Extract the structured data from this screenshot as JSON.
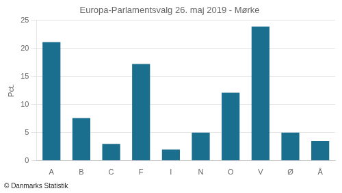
{
  "chart_data": {
    "type": "bar",
    "title": "Europa-Parlamentsvalg 26. maj 2019 - Mørke",
    "categories": [
      "A",
      "B",
      "C",
      "F",
      "I",
      "N",
      "O",
      "V",
      "Ø",
      "Å"
    ],
    "values": [
      21.1,
      7.6,
      3.0,
      17.2,
      2.0,
      5.0,
      12.1,
      23.9,
      5.0,
      3.5
    ],
    "color": "#1a6e8e",
    "ylabel": "Pct.",
    "ylim": [
      0,
      25
    ],
    "yticks": [
      0,
      5,
      10,
      15,
      20,
      25
    ],
    "grid": true,
    "footer": "© Danmarks Statistik"
  }
}
